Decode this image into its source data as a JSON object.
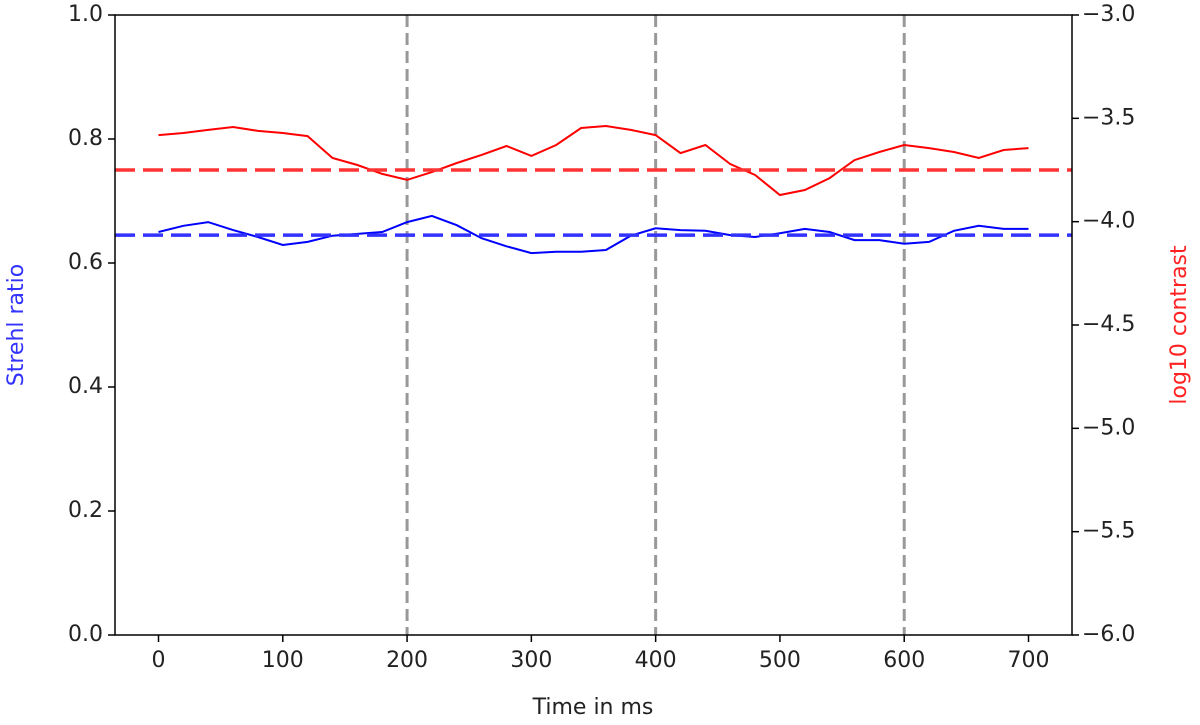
{
  "chart_data": {
    "type": "line",
    "xlabel": "Time in ms",
    "ylabel": "Strehl ratio",
    "ylabel_color": "#3333ff",
    "y2label": "log10 contrast",
    "y2label_color": "#ff2222",
    "xlim": [
      -35,
      735
    ],
    "xticks": [
      0,
      100,
      200,
      300,
      400,
      500,
      600,
      700
    ],
    "ylim": [
      0,
      1
    ],
    "yticks": [
      {
        "value": 0,
        "label": "0.0"
      },
      0.2,
      0.4,
      0.6,
      0.8,
      {
        "value": 1,
        "label": "1.0"
      }
    ],
    "y2lim": [
      -6,
      -3
    ],
    "y2ticks": [
      {
        "value": -6,
        "label": "−6.0"
      },
      {
        "value": -5.5,
        "label": "−5.5"
      },
      {
        "value": -5,
        "label": "−5.0"
      },
      {
        "value": -4.5,
        "label": "−4.5"
      },
      {
        "value": -4,
        "label": "−4.0"
      },
      {
        "value": -3.5,
        "label": "−3.5"
      },
      {
        "value": -3,
        "label": "−3.0"
      }
    ],
    "grid": false,
    "x": [
      0,
      20,
      40,
      60,
      80,
      100,
      120,
      140,
      160,
      180,
      200,
      220,
      240,
      260,
      280,
      300,
      320,
      340,
      360,
      380,
      400,
      420,
      440,
      460,
      480,
      500,
      520,
      540,
      560,
      580,
      600,
      620,
      640,
      660,
      680,
      700
    ],
    "series": [
      {
        "name": "Strehl ratio",
        "color": "#0000ff",
        "axis": "y",
        "values": [
          0.65,
          0.66,
          0.666,
          0.653,
          0.642,
          0.629,
          0.634,
          0.644,
          0.647,
          0.65,
          0.666,
          0.676,
          0.661,
          0.64,
          0.627,
          0.616,
          0.618,
          0.618,
          0.621,
          0.644,
          0.656,
          0.653,
          0.652,
          0.645,
          0.642,
          0.648,
          0.655,
          0.65,
          0.637,
          0.637,
          0.631,
          0.634,
          0.652,
          0.66,
          0.655,
          0.655
        ]
      },
      {
        "name": "log10 contrast",
        "color": "#ff0000",
        "axis": "y2",
        "values": [
          -3.581,
          -3.571,
          -3.556,
          -3.542,
          -3.561,
          -3.571,
          -3.586,
          -3.692,
          -3.726,
          -3.769,
          -3.798,
          -3.76,
          -3.716,
          -3.677,
          -3.634,
          -3.682,
          -3.629,
          -3.547,
          -3.537,
          -3.556,
          -3.581,
          -3.668,
          -3.629,
          -3.721,
          -3.774,
          -3.871,
          -3.847,
          -3.789,
          -3.702,
          -3.663,
          -3.629,
          -3.644,
          -3.663,
          -3.692,
          -3.653,
          -3.644
        ]
      }
    ],
    "hlines": [
      {
        "value": 0.645,
        "color": "#3333ff",
        "axis": "y"
      },
      {
        "value": -3.75,
        "color": "#ff3333",
        "axis": "y2"
      }
    ],
    "vlines": {
      "values": [
        200,
        400,
        600
      ],
      "color": "#999999"
    }
  }
}
